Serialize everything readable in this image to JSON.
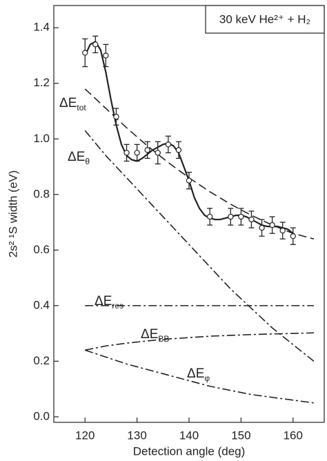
{
  "chart_data": {
    "type": "line",
    "inset_label": "30 keV He²⁺ + H₂",
    "x_label": "Detection angle (deg)",
    "y_label": "2s² ¹S width (eV)",
    "xlim": [
      114,
      166
    ],
    "xticks": [
      120,
      130,
      140,
      150,
      160
    ],
    "ylim": [
      -0.02,
      1.48
    ],
    "yticks": [
      {
        "value": 0,
        "label": "0.0"
      },
      {
        "value": 0.2,
        "label": "0.2"
      },
      {
        "value": 0.4,
        "label": "0.4"
      },
      {
        "value": 0.6,
        "label": "0.6"
      },
      {
        "value": 0.8,
        "label": "0.8"
      },
      {
        "value": 1,
        "label": "1.0"
      },
      {
        "value": 1.2,
        "label": "1.2"
      },
      {
        "value": 1.4,
        "label": "1.4"
      }
    ],
    "color": "#222222",
    "measured": {
      "marker": "circle",
      "x": [
        120,
        122,
        124,
        126,
        128,
        130,
        132,
        134,
        136,
        138,
        140,
        144,
        148,
        150,
        152,
        154,
        156,
        158,
        160
      ],
      "values": [
        1.31,
        1.34,
        1.3,
        1.08,
        0.95,
        0.95,
        0.96,
        0.95,
        0.98,
        0.96,
        0.85,
        0.72,
        0.72,
        0.72,
        0.71,
        0.68,
        0.69,
        0.67,
        0.65
      ],
      "errors": [
        0.05,
        0.03,
        0.04,
        0.03,
        0.03,
        0.03,
        0.03,
        0.04,
        0.03,
        0.03,
        0.03,
        0.03,
        0.03,
        0.03,
        0.03,
        0.03,
        0.03,
        0.03,
        0.03
      ]
    },
    "series": [
      {
        "style": "solid",
        "x": [
          120,
          121,
          122,
          123,
          124,
          125,
          126,
          127,
          128,
          129,
          130,
          131,
          132,
          133,
          134,
          135,
          136,
          137,
          138,
          139,
          140,
          141,
          142,
          143,
          144,
          145,
          146,
          147,
          148,
          149,
          150,
          151,
          152,
          153,
          154,
          155,
          156,
          157,
          158,
          159,
          160
        ],
        "values": [
          1.3,
          1.34,
          1.35,
          1.32,
          1.24,
          1.14,
          1.05,
          0.98,
          0.94,
          0.925,
          0.92,
          0.93,
          0.945,
          0.96,
          0.97,
          0.98,
          0.985,
          0.975,
          0.95,
          0.9,
          0.85,
          0.79,
          0.75,
          0.725,
          0.715,
          0.71,
          0.71,
          0.715,
          0.72,
          0.725,
          0.725,
          0.72,
          0.71,
          0.7,
          0.69,
          0.685,
          0.685,
          0.685,
          0.68,
          0.675,
          0.66
        ]
      },
      {
        "style": "dashed",
        "name": "ΔE",
        "subscript": "tot",
        "x": [
          120,
          124,
          128,
          132,
          136,
          140,
          144,
          148,
          152,
          156,
          160,
          164
        ],
        "values": [
          1.18,
          1.11,
          1.04,
          0.975,
          0.915,
          0.86,
          0.81,
          0.765,
          0.725,
          0.69,
          0.66,
          0.64
        ]
      },
      {
        "style": "dashdot",
        "name": "ΔE",
        "subscript": "θ",
        "x": [
          120,
          124,
          128,
          132,
          136,
          140,
          144,
          148,
          152,
          156,
          160,
          164
        ],
        "values": [
          1.03,
          0.94,
          0.86,
          0.78,
          0.7,
          0.62,
          0.54,
          0.46,
          0.39,
          0.32,
          0.26,
          0.2
        ]
      },
      {
        "style": "dashdot",
        "name": "ΔE",
        "subscript": "res",
        "x": [
          120,
          164
        ],
        "values": [
          0.4,
          0.4
        ]
      },
      {
        "style": "dashdot",
        "name": "ΔE",
        "subscript": "BB",
        "x": [
          120,
          124,
          128,
          132,
          136,
          140,
          144,
          148,
          152,
          156,
          160,
          164
        ],
        "values": [
          0.24,
          0.255,
          0.265,
          0.273,
          0.28,
          0.285,
          0.29,
          0.293,
          0.296,
          0.298,
          0.3,
          0.302
        ]
      },
      {
        "style": "dashdot",
        "name": "ΔE",
        "subscript": "φ",
        "x": [
          120,
          124,
          128,
          132,
          136,
          140,
          144,
          148,
          152,
          156,
          160,
          164
        ],
        "values": [
          0.24,
          0.215,
          0.19,
          0.17,
          0.15,
          0.13,
          0.11,
          0.095,
          0.08,
          0.07,
          0.06,
          0.05
        ]
      }
    ]
  }
}
